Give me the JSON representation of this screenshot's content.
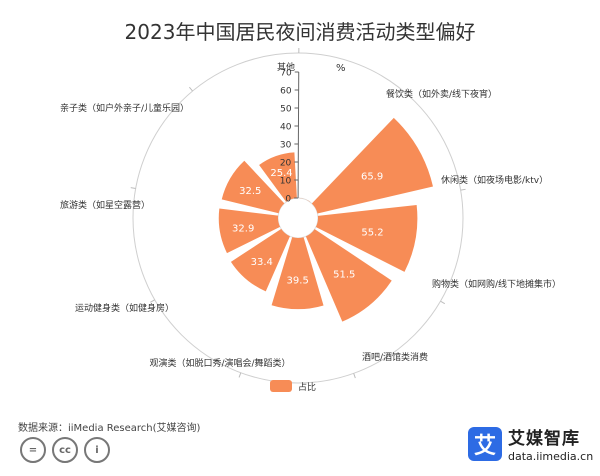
{
  "title": "2023年中国居民夜间消费活动类型偏好",
  "chart_data": {
    "type": "polar-bar",
    "categories": [
      "其他",
      "餐饮类（如外卖/线下夜宵）",
      "休闲类（如夜场电影/ktv）",
      "购物类（如网购/线下地摊集市）",
      "酒吧/酒馆类消费",
      "观演类（如脱口秀/演唱会/舞蹈类）",
      "运动健身类（如健身房）",
      "旅游类（如星空露营）",
      "亲子类（如户外亲子/儿童乐园）"
    ],
    "series": [
      {
        "name": "占比",
        "values": [
          0.1,
          65.9,
          55.2,
          51.5,
          39.5,
          33.4,
          32.9,
          32.5,
          25.4
        ]
      }
    ],
    "radial_unit": "%",
    "radial_ticks": [
      0,
      10,
      20,
      30,
      40,
      50,
      60,
      70
    ],
    "radial_max": 70,
    "color": "#F78C56",
    "legend_position": "bottom"
  },
  "source_text": "数据来源：iiMedia Research(艾媒咨询)",
  "brand": {
    "logo_char": "艾",
    "name": "艾媒智库",
    "url": "data.iimedia.cn"
  },
  "license_icons": [
    "=",
    "cc",
    "i"
  ]
}
